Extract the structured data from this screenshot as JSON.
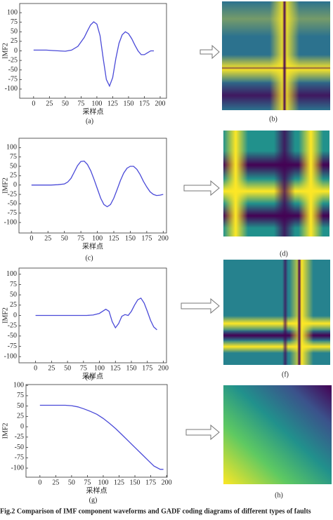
{
  "chart_data": [
    {
      "type": "line",
      "y_label": "IMF2",
      "x_label": "采样点",
      "caption": "(a)",
      "color": "#4a4ad8",
      "x": [
        0,
        10,
        20,
        30,
        40,
        50,
        60,
        70,
        80,
        85,
        90,
        95,
        100,
        105,
        110,
        115,
        120,
        125,
        130,
        135,
        140,
        145,
        150,
        155,
        160,
        165,
        170,
        175,
        180,
        185,
        190
      ],
      "values": [
        2,
        2,
        2,
        1,
        0,
        -1,
        2,
        12,
        35,
        52,
        68,
        76,
        70,
        40,
        -20,
        -75,
        -92,
        -70,
        -20,
        20,
        42,
        50,
        45,
        32,
        15,
        0,
        -10,
        -10,
        -5,
        0,
        0
      ],
      "xlim": [
        -22,
        210
      ],
      "ylim": [
        -124,
        124
      ],
      "xticks": [
        0,
        25,
        50,
        75,
        100,
        125,
        150,
        175,
        200
      ],
      "yticks": [
        100,
        75,
        50,
        25,
        0,
        -25,
        -50,
        -75,
        -100
      ]
    },
    {
      "type": "line",
      "y_label": "IMF2",
      "x_label": "采样点",
      "caption": "(c)",
      "color": "#4a4ad8",
      "x": [
        0,
        10,
        20,
        30,
        40,
        50,
        55,
        60,
        65,
        70,
        75,
        80,
        85,
        90,
        95,
        100,
        105,
        110,
        115,
        120,
        125,
        130,
        135,
        140,
        145,
        150,
        155,
        160,
        165,
        170,
        175,
        180,
        185,
        190,
        195,
        200
      ],
      "values": [
        0,
        0,
        0,
        0,
        1,
        3,
        8,
        18,
        35,
        52,
        63,
        64,
        55,
        38,
        15,
        -10,
        -35,
        -52,
        -58,
        -52,
        -35,
        -12,
        12,
        32,
        45,
        50,
        50,
        42,
        28,
        10,
        -5,
        -18,
        -25,
        -28,
        -27,
        -25
      ],
      "xlim": [
        -19,
        205
      ],
      "ylim": [
        -128,
        125
      ],
      "xticks": [
        0,
        25,
        50,
        75,
        100,
        125,
        150,
        175,
        200
      ],
      "yticks": [
        100,
        75,
        50,
        25,
        0,
        -25,
        -50,
        -75,
        -100
      ]
    },
    {
      "type": "line",
      "y_label": "IMF2",
      "x_label": "采样点",
      "caption": "(e)",
      "color": "#4a4ad8",
      "x": [
        0,
        20,
        40,
        60,
        80,
        90,
        100,
        105,
        110,
        115,
        120,
        125,
        130,
        135,
        140,
        145,
        150,
        155,
        160,
        165,
        170,
        175,
        180,
        185,
        190
      ],
      "values": [
        0,
        0,
        0,
        0,
        0,
        1,
        5,
        10,
        15,
        10,
        -15,
        -30,
        -20,
        -2,
        2,
        0,
        10,
        25,
        38,
        42,
        30,
        10,
        -12,
        -28,
        -35
      ],
      "xlim": [
        -26,
        205
      ],
      "ylim": [
        -115,
        115
      ],
      "xticks": [
        0,
        25,
        50,
        75,
        100,
        125,
        150,
        175,
        200
      ],
      "yticks": [
        100,
        75,
        50,
        25,
        0,
        -25,
        -50,
        -75,
        -100
      ]
    },
    {
      "type": "line",
      "y_label": "IMF2",
      "x_label": "采样点",
      "caption": "(g)",
      "color": "#4a4ad8",
      "x": [
        0,
        20,
        40,
        50,
        60,
        70,
        80,
        90,
        100,
        110,
        120,
        130,
        140,
        150,
        160,
        170,
        180,
        190,
        195
      ],
      "values": [
        52,
        52,
        52,
        51,
        48,
        43,
        37,
        30,
        20,
        8,
        -5,
        -20,
        -35,
        -50,
        -65,
        -80,
        -95,
        -103,
        -103
      ],
      "xlim": [
        -22,
        201
      ],
      "ylim": [
        -122,
        102
      ],
      "xticks": [
        0,
        25,
        50,
        75,
        100,
        125,
        150,
        175,
        200
      ],
      "yticks": [
        100,
        75,
        50,
        25,
        0,
        -25,
        -50,
        -75,
        -100
      ]
    }
  ],
  "images": [
    "(b)",
    "(d)",
    "(f)",
    "(h)"
  ],
  "figure_caption": "Fig.2  Comparison of IMF component waveforms and GADF coding diagrams of different types of faults"
}
